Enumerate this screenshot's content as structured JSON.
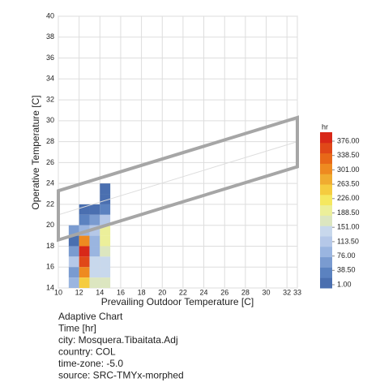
{
  "chart_data": {
    "type": "heatmap",
    "xlabel": "Prevailing Outdoor Temperature [C]",
    "ylabel": "Operative Temperature [C]",
    "xlim": [
      10,
      33
    ],
    "ylim": [
      14,
      40
    ],
    "xticks": [
      10,
      12,
      14,
      16,
      18,
      20,
      22,
      24,
      26,
      28,
      30,
      32,
      33
    ],
    "yticks": [
      14,
      16,
      18,
      20,
      22,
      24,
      26,
      28,
      30,
      32,
      34,
      36,
      38,
      40
    ],
    "grid": true,
    "cells": {
      "x": [
        11,
        11,
        11,
        11,
        11,
        11,
        12,
        12,
        12,
        12,
        12,
        12,
        12,
        12,
        13,
        13,
        13,
        13,
        13,
        13,
        13,
        13,
        14,
        14,
        14,
        14,
        14,
        14,
        14,
        14,
        14,
        14
      ],
      "y": [
        19,
        18,
        17,
        16,
        15,
        14,
        21,
        20,
        19,
        18,
        17,
        16,
        15,
        14,
        21,
        20,
        19,
        18,
        17,
        16,
        15,
        14,
        23,
        22,
        21,
        20,
        19,
        18,
        17,
        16,
        15,
        14
      ],
      "values": [
        60,
        20,
        70,
        110,
        60,
        100,
        10,
        50,
        100,
        300,
        370,
        340,
        280,
        230,
        20,
        60,
        110,
        100,
        90,
        130,
        150,
        160,
        15,
        20,
        40,
        110,
        190,
        200,
        170,
        140,
        150,
        160
      ]
    },
    "comfort_band": {
      "x": [
        10,
        33
      ],
      "upper": [
        23.3,
        30.3
      ],
      "lower": [
        18.6,
        25.6
      ],
      "neutral": [
        21,
        28
      ],
      "color": "#a6a6a6"
    },
    "legend": {
      "title": "hr",
      "range": [
        1,
        376
      ],
      "ticks": [
        {
          "value": 1,
          "label": "1.00"
        },
        {
          "value": 38.5,
          "label": "38.50"
        },
        {
          "value": 76,
          "label": "76.00"
        },
        {
          "value": 113.5,
          "label": "113.50"
        },
        {
          "value": 151,
          "label": "151.00"
        },
        {
          "value": 188.5,
          "label": "188.50"
        },
        {
          "value": 226,
          "label": "226.00"
        },
        {
          "value": 263.5,
          "label": "263.50"
        },
        {
          "value": 301,
          "label": "301.00"
        },
        {
          "value": 338.5,
          "label": "338.50"
        },
        {
          "value": 376,
          "label": "376.00"
        }
      ],
      "colors": [
        "#4a6fb0",
        "#5b82c0",
        "#7a9bd0",
        "#9ab5e0",
        "#b5c8e8",
        "#c8d8ec",
        "#dce6c0",
        "#ecef9a",
        "#f5e860",
        "#f5cc40",
        "#f0ac30",
        "#ee8a20",
        "#e86818",
        "#e04818",
        "#d82818"
      ]
    },
    "notes": [
      "Adaptive Chart",
      "Time [hr]",
      "city: Mosquera.Tibaitata.Adj",
      "country: COL",
      "time-zone: -5.0",
      "source: SRC-TMYx-morphed"
    ]
  }
}
